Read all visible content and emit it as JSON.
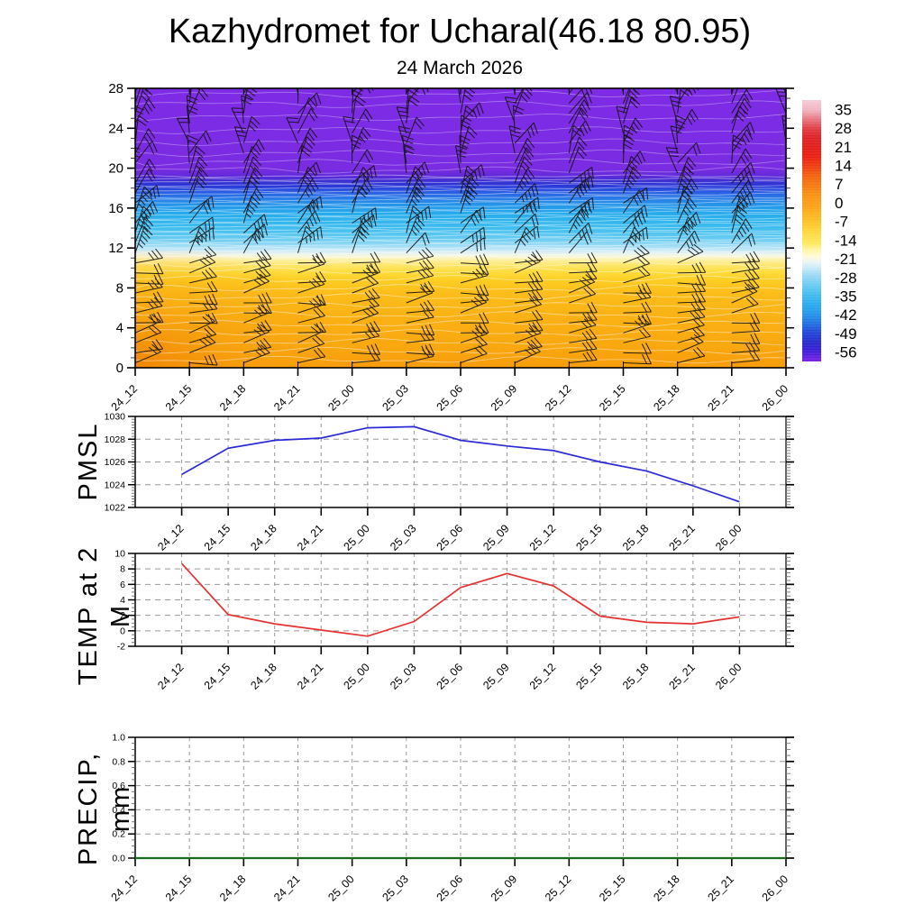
{
  "header": {
    "title": "Kazhydromet for Ucharal(46.18 80.95)",
    "date": "24 March 2026"
  },
  "times": [
    "24_12",
    "24_15",
    "24_18",
    "24_21",
    "25_00",
    "25_03",
    "25_06",
    "25_09",
    "25_12",
    "25_15",
    "25_18",
    "25_21",
    "26_00"
  ],
  "panels": {
    "pmsl": {
      "title": "PMSL",
      "yticks": [
        1022,
        1024,
        1026,
        1028,
        1030
      ],
      "minor_step": 0.25
    },
    "temp": {
      "title": "TEMP at 2 M",
      "yticks": [
        -2,
        0,
        2,
        4,
        6,
        8,
        10
      ],
      "minor_step": 0.5
    },
    "precip": {
      "title": "PRECIP, mm",
      "ytick_labels": [
        "0.0",
        "0.2",
        "0.4",
        "0.6",
        "0.8",
        "1.0"
      ],
      "minor_step": 0.05
    }
  },
  "cross_section": {
    "yticks": [
      0,
      4,
      8,
      12,
      16,
      20,
      24,
      28
    ],
    "ylim": [
      0,
      28
    ],
    "gradient": [
      [
        0,
        "#7e2be6"
      ],
      [
        0.29,
        "#7a2ce2"
      ],
      [
        0.315,
        "#5f2ada"
      ],
      [
        0.332,
        "#3c31d2"
      ],
      [
        0.347,
        "#2b35d6"
      ],
      [
        0.36,
        "#2a4ade"
      ],
      [
        0.382,
        "#2a6ee6"
      ],
      [
        0.414,
        "#2693e9"
      ],
      [
        0.45,
        "#27adec"
      ],
      [
        0.5,
        "#3fbdee"
      ],
      [
        0.536,
        "#66cbf1"
      ],
      [
        0.558,
        "#90d8f4"
      ],
      [
        0.576,
        "#bfe7f7"
      ],
      [
        0.59,
        "#e4f1f1"
      ],
      [
        0.601,
        "#f8f7da"
      ],
      [
        0.615,
        "#fdf0a4"
      ],
      [
        0.633,
        "#fee66c"
      ],
      [
        0.658,
        "#fedc3c"
      ],
      [
        0.687,
        "#fdcd23"
      ],
      [
        0.733,
        "#fcbd1a"
      ],
      [
        0.82,
        "#fab114"
      ],
      [
        0.93,
        "#f9a70f"
      ],
      [
        1,
        "#f89c0b"
      ]
    ],
    "dense_band": {
      "from": 11.1,
      "to": 19.2,
      "step": 0.3
    },
    "sparse_levels": [
      0.8,
      1.7,
      2.6,
      3.5,
      4.4,
      5.3,
      6.2,
      7.1,
      8.0,
      8.9,
      9.7,
      10.4,
      19.8,
      20.6,
      21.5,
      22.6,
      23.8,
      25.1,
      26.4,
      27.4
    ],
    "barb_levels": {
      "from": 0.5,
      "to": 27.5,
      "step": 1
    }
  },
  "colorbar": {
    "values": [
      35,
      28,
      21,
      14,
      7,
      0,
      -7,
      -14,
      -21,
      -28,
      -35,
      -42,
      -49,
      -56
    ],
    "stops": [
      [
        0,
        "#f5ccd6"
      ],
      [
        0.04,
        "#f0b2bd"
      ],
      [
        0.071,
        "#e87a85"
      ],
      [
        0.11,
        "#e13a42"
      ],
      [
        0.143,
        "#dc2125"
      ],
      [
        0.19,
        "#e41d15"
      ],
      [
        0.214,
        "#ea1d10"
      ],
      [
        0.26,
        "#ef420f"
      ],
      [
        0.286,
        "#f2600f"
      ],
      [
        0.33,
        "#f67a10"
      ],
      [
        0.357,
        "#f98f12"
      ],
      [
        0.41,
        "#fba317"
      ],
      [
        0.43,
        "#fcb01b"
      ],
      [
        0.48,
        "#fdc92c"
      ],
      [
        0.5,
        "#fed53a"
      ],
      [
        0.55,
        "#fee95e"
      ],
      [
        0.571,
        "#fff4a0"
      ],
      [
        0.6,
        "#fffbda"
      ],
      [
        0.62,
        "#e9f5f5"
      ],
      [
        0.643,
        "#c8e9f7"
      ],
      [
        0.67,
        "#9bd9f4"
      ],
      [
        0.714,
        "#62c9f1"
      ],
      [
        0.75,
        "#3db9ee"
      ],
      [
        0.786,
        "#27a9ec"
      ],
      [
        0.82,
        "#2394e9"
      ],
      [
        0.857,
        "#1f6ee2"
      ],
      [
        0.89,
        "#2244d6"
      ],
      [
        0.929,
        "#2527cd"
      ],
      [
        0.96,
        "#3d1dd6"
      ],
      [
        1,
        "#7e22e6"
      ]
    ]
  },
  "colors": {
    "pmsl_line": "#2a2ad6",
    "temp_line": "#e73131",
    "precip_line": "#1a6b1a",
    "frame": "#000000",
    "grid": "#999999",
    "barb": "#141414",
    "contour": "#ffffff",
    "contour_purple": "#d8c9f6"
  },
  "chart_data": [
    {
      "type": "heatmap",
      "name": "temperature-height-cross-section",
      "x": [
        "24_12",
        "24_15",
        "24_18",
        "24_21",
        "25_00",
        "25_03",
        "25_06",
        "25_09",
        "25_12",
        "25_15",
        "25_18",
        "25_21",
        "26_00"
      ],
      "ylim": [
        0,
        28
      ],
      "yticks": [
        0,
        4,
        8,
        12,
        16,
        20,
        24,
        28
      ],
      "colorbar_ticks": [
        35,
        28,
        21,
        14,
        7,
        0,
        -7,
        -14,
        -21,
        -28,
        -35,
        -42,
        -49,
        -56
      ],
      "description": "Time-height temperature section with wind barbs: orange/yellow warm layer below ~11, pale band near 11, cyan 12-17.5, dark blue 18-19, purple above 19",
      "legend_position": "right-colorbar"
    },
    {
      "type": "line",
      "name": "PMSL",
      "x": [
        "24_12",
        "24_15",
        "24_18",
        "24_21",
        "25_00",
        "25_03",
        "25_06",
        "25_09",
        "25_12",
        "25_15",
        "25_18",
        "25_21",
        "26_00"
      ],
      "values": [
        1024.9,
        1027.2,
        1027.9,
        1028.1,
        1029.0,
        1029.1,
        1027.9,
        1027.4,
        1027.0,
        1026.0,
        1025.2,
        1023.9,
        1022.5
      ],
      "ylim": [
        1022,
        1030
      ],
      "yticks": [
        1022,
        1024,
        1026,
        1028,
        1030
      ],
      "grid": true
    },
    {
      "type": "line",
      "name": "TEMP at 2 M",
      "x": [
        "24_12",
        "24_15",
        "24_18",
        "24_21",
        "25_00",
        "25_03",
        "25_06",
        "25_09",
        "25_12",
        "25_15",
        "25_18",
        "25_21",
        "26_00"
      ],
      "values": [
        8.7,
        2.1,
        0.9,
        0.1,
        -0.7,
        1.2,
        5.6,
        7.4,
        5.8,
        1.9,
        1.1,
        0.9,
        1.8
      ],
      "ylim": [
        -2,
        10
      ],
      "yticks": [
        -2,
        0,
        2,
        4,
        6,
        8,
        10
      ],
      "grid": true
    },
    {
      "type": "line",
      "name": "PRECIP, mm",
      "x": [
        "24_12",
        "24_15",
        "24_18",
        "24_21",
        "25_00",
        "25_03",
        "25_06",
        "25_09",
        "25_12",
        "25_15",
        "25_18",
        "25_21",
        "26_00"
      ],
      "values": [
        0,
        0,
        0,
        0,
        0,
        0,
        0,
        0,
        0,
        0,
        0,
        0,
        0
      ],
      "ylim": [
        0,
        1
      ],
      "yticks": [
        0.0,
        0.2,
        0.4,
        0.6,
        0.8,
        1.0
      ],
      "grid": true
    }
  ]
}
